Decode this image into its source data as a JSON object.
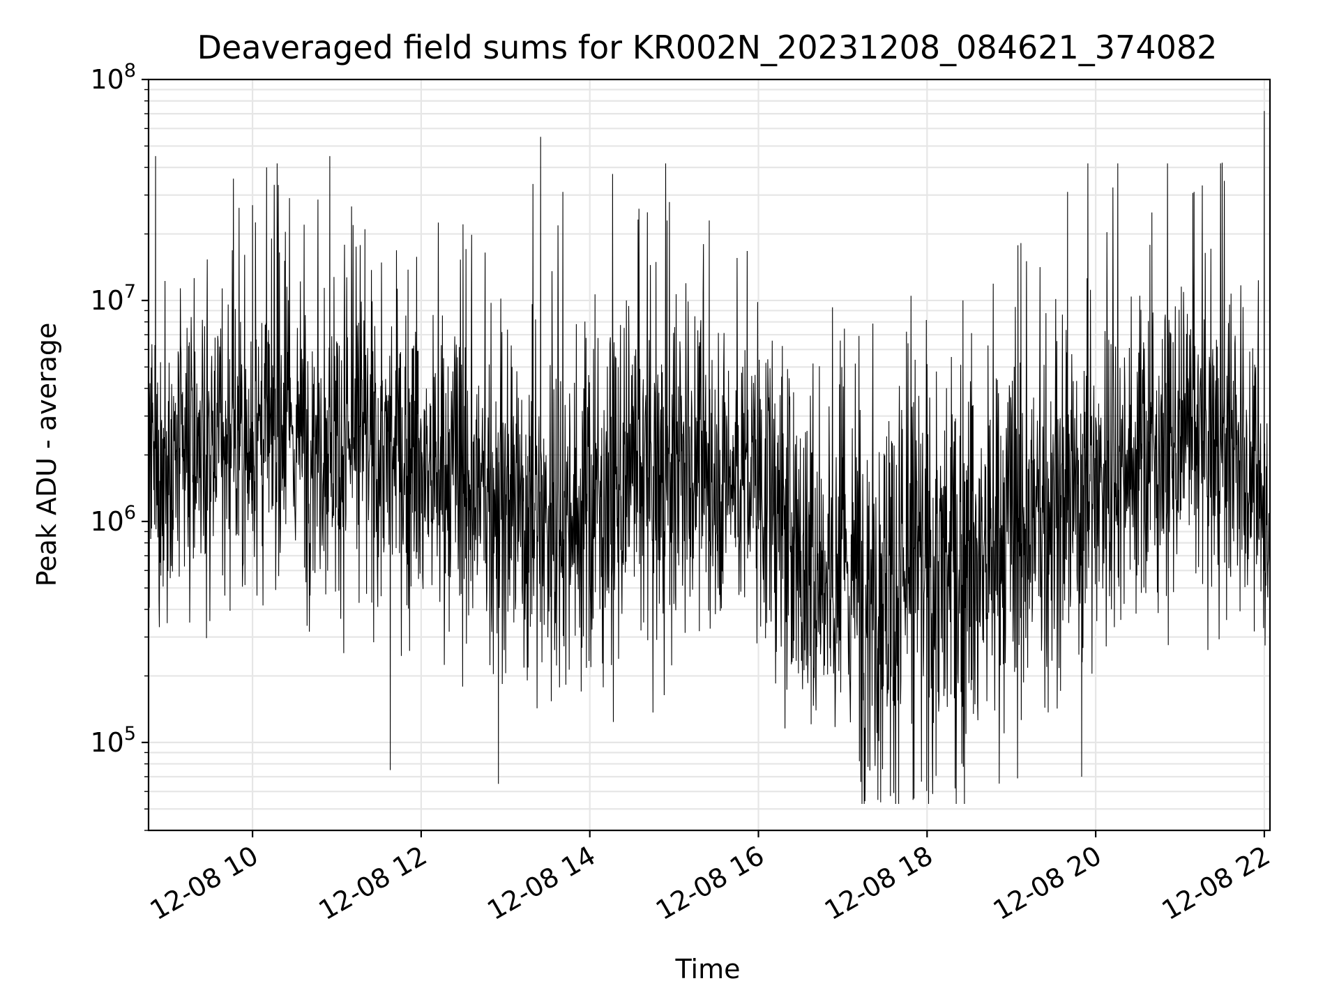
{
  "chart_data": {
    "type": "line",
    "title": "Deaveraged field sums for KR002N_20231208_084621_374082",
    "xlabel": "Time",
    "ylabel": "Peak ADU - average",
    "x_range": [
      "2023-12-08 08:46",
      "2023-12-08 22:04"
    ],
    "ylim": [
      40000,
      100000000
    ],
    "y_scale": "log",
    "grid": true,
    "grid_minor_y": true,
    "x_tick_labels": [
      "12-08 10",
      "12-08 12",
      "12-08 14",
      "12-08 16",
      "12-08 18",
      "12-08 20",
      "12-08 22"
    ],
    "x_tick_times": [
      "2023-12-08 10:00",
      "2023-12-08 12:00",
      "2023-12-08 14:00",
      "2023-12-08 16:00",
      "2023-12-08 18:00",
      "2023-12-08 20:00",
      "2023-12-08 22:00"
    ],
    "y_tick_labels": [
      {
        "base": "10",
        "exp": "5",
        "value": 100000
      },
      {
        "base": "10",
        "exp": "6",
        "value": 1000000
      },
      {
        "base": "10",
        "exp": "7",
        "value": 10000000
      },
      {
        "base": "10",
        "exp": "8",
        "value": 100000000
      }
    ],
    "series": [
      {
        "color": "#000000",
        "envelope": {
          "times": [
            "2023-12-08 08:46",
            "2023-12-08 09:30",
            "2023-12-08 10:30",
            "2023-12-08 11:30",
            "2023-12-08 12:30",
            "2023-12-08 13:30",
            "2023-12-08 14:30",
            "2023-12-08 15:30",
            "2023-12-08 16:00",
            "2023-12-08 16:30",
            "2023-12-08 17:30",
            "2023-12-08 18:30",
            "2023-12-08 19:30",
            "2023-12-08 20:30",
            "2023-12-08 21:30",
            "2023-12-08 22:04"
          ],
          "median": [
            1500000,
            2000000,
            2500000,
            2000000,
            1400000,
            1000000,
            1400000,
            1700000,
            1500000,
            700000,
            500000,
            600000,
            1100000,
            2000000,
            2200000,
            1000000
          ],
          "spread": [
            0.6,
            0.6,
            0.6,
            0.6,
            0.65,
            0.7,
            0.7,
            0.6,
            0.6,
            0.8,
            0.85,
            0.85,
            0.75,
            0.6,
            0.6,
            0.5
          ]
        },
        "spikes": [
          {
            "time": "2023-12-08 08:51",
            "value": 45000000
          },
          {
            "time": "2023-12-08 10:00",
            "value": 27000000
          },
          {
            "time": "2023-12-08 10:10",
            "value": 40000000
          },
          {
            "time": "2023-12-08 10:55",
            "value": 45000000
          },
          {
            "time": "2023-12-08 11:20",
            "value": 21000000
          },
          {
            "time": "2023-12-08 11:38",
            "value": 75000
          },
          {
            "time": "2023-12-08 12:55",
            "value": 65000
          },
          {
            "time": "2023-12-08 13:25",
            "value": 55000000
          },
          {
            "time": "2023-12-08 14:35",
            "value": 26000000
          },
          {
            "time": "2023-12-08 14:55",
            "value": 23000000
          },
          {
            "time": "2023-12-08 15:25",
            "value": 23000000
          },
          {
            "time": "2023-12-08 17:25",
            "value": 55000
          },
          {
            "time": "2023-12-08 17:50",
            "value": 55000
          },
          {
            "time": "2023-12-08 18:20",
            "value": 62000
          },
          {
            "time": "2023-12-08 19:40",
            "value": 31000000
          },
          {
            "time": "2023-12-08 19:50",
            "value": 70000
          },
          {
            "time": "2023-12-08 20:40",
            "value": 25000000
          },
          {
            "time": "2023-12-08 21:10",
            "value": 31000000
          },
          {
            "time": "2023-12-08 21:30",
            "value": 42000000
          },
          {
            "time": "2023-12-08 22:00",
            "value": 72000000
          }
        ]
      }
    ]
  }
}
